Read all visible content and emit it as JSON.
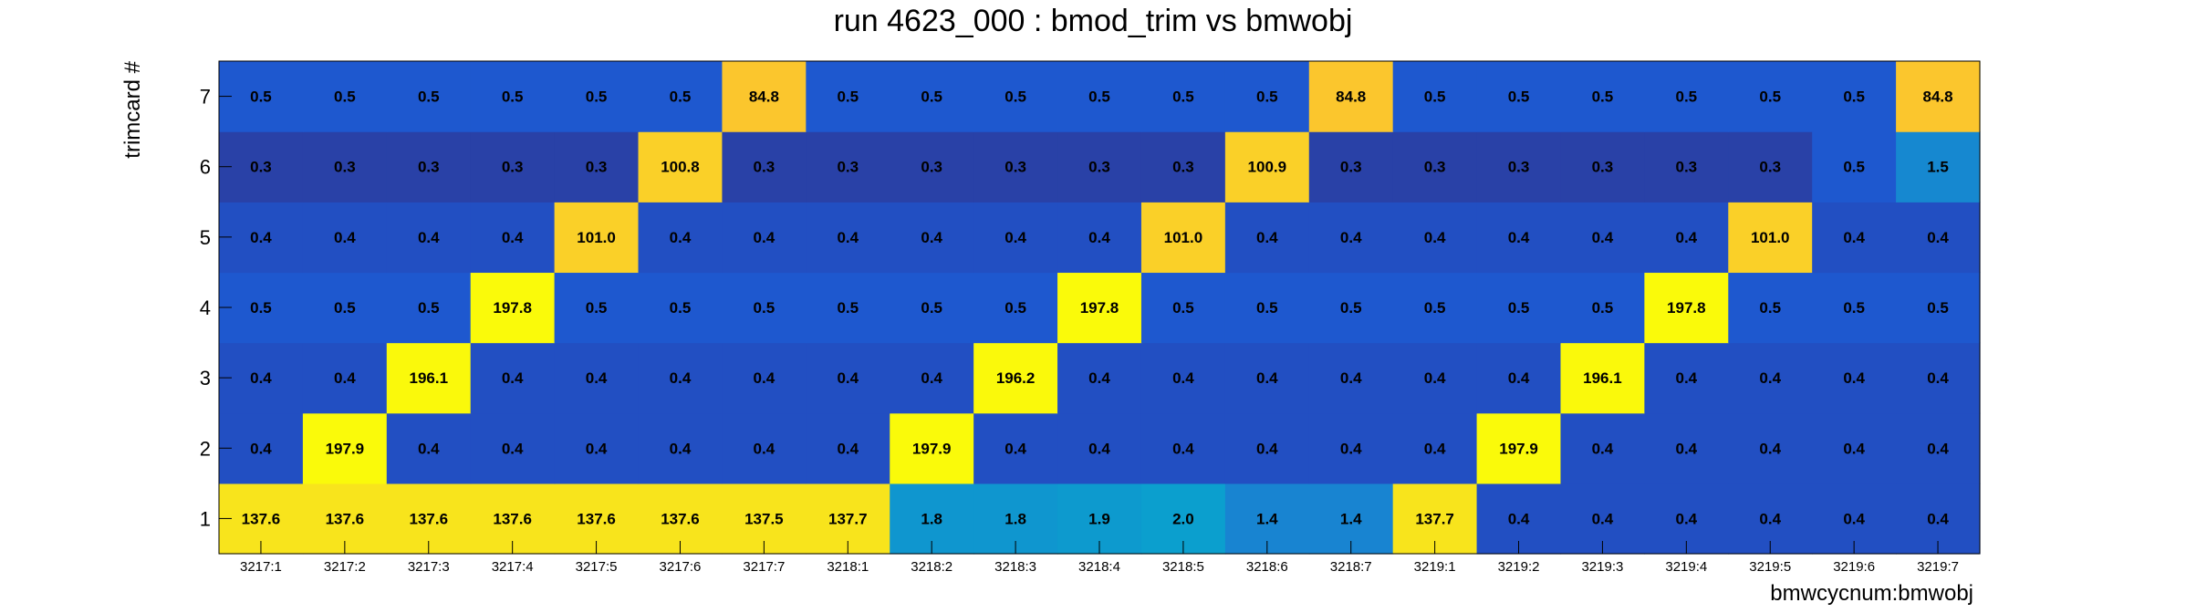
{
  "chart_data": {
    "type": "heatmap",
    "title": "run 4623_000 : bmod_trim vs bmwobj",
    "xlabel": "bmwcycnum:bmwobj",
    "ylabel": "trimcard #",
    "x_categories": [
      "3217:1",
      "3217:2",
      "3217:3",
      "3217:4",
      "3217:5",
      "3217:6",
      "3217:7",
      "3218:1",
      "3218:2",
      "3218:3",
      "3218:4",
      "3218:5",
      "3218:6",
      "3218:7",
      "3219:1",
      "3219:2",
      "3219:3",
      "3219:4",
      "3219:5",
      "3219:6",
      "3219:7"
    ],
    "y_categories": [
      "1",
      "2",
      "3",
      "4",
      "5",
      "6",
      "7"
    ],
    "values": [
      [
        "137.6",
        "137.6",
        "137.6",
        "137.6",
        "137.6",
        "137.6",
        "137.5",
        "137.7",
        "1.8",
        "1.8",
        "1.9",
        "2.0",
        "1.4",
        "1.4",
        "137.7",
        "0.4",
        "0.4",
        "0.4",
        "0.4",
        "0.4",
        "0.4"
      ],
      [
        "0.4",
        "197.9",
        "0.4",
        "0.4",
        "0.4",
        "0.4",
        "0.4",
        "0.4",
        "197.9",
        "0.4",
        "0.4",
        "0.4",
        "0.4",
        "0.4",
        "0.4",
        "197.9",
        "0.4",
        "0.4",
        "0.4",
        "0.4",
        "0.4"
      ],
      [
        "0.4",
        "0.4",
        "196.1",
        "0.4",
        "0.4",
        "0.4",
        "0.4",
        "0.4",
        "0.4",
        "196.2",
        "0.4",
        "0.4",
        "0.4",
        "0.4",
        "0.4",
        "0.4",
        "196.1",
        "0.4",
        "0.4",
        "0.4",
        "0.4"
      ],
      [
        "0.5",
        "0.5",
        "0.5",
        "197.8",
        "0.5",
        "0.5",
        "0.5",
        "0.5",
        "0.5",
        "0.5",
        "197.8",
        "0.5",
        "0.5",
        "0.5",
        "0.5",
        "0.5",
        "0.5",
        "197.8",
        "0.5",
        "0.5",
        "0.5"
      ],
      [
        "0.4",
        "0.4",
        "0.4",
        "0.4",
        "101.0",
        "0.4",
        "0.4",
        "0.4",
        "0.4",
        "0.4",
        "0.4",
        "101.0",
        "0.4",
        "0.4",
        "0.4",
        "0.4",
        "0.4",
        "0.4",
        "101.0",
        "0.4",
        "0.4"
      ],
      [
        "0.3",
        "0.3",
        "0.3",
        "0.3",
        "0.3",
        "100.8",
        "0.3",
        "0.3",
        "0.3",
        "0.3",
        "0.3",
        "0.3",
        "100.9",
        "0.3",
        "0.3",
        "0.3",
        "0.3",
        "0.3",
        "0.3",
        "0.5",
        "1.5"
      ],
      [
        "0.5",
        "0.5",
        "0.5",
        "0.5",
        "0.5",
        "0.5",
        "84.8",
        "0.5",
        "0.5",
        "0.5",
        "0.5",
        "0.5",
        "0.5",
        "84.8",
        "0.5",
        "0.5",
        "0.5",
        "0.5",
        "0.5",
        "0.5",
        "84.8"
      ]
    ],
    "color_scale": {
      "stops": [
        {
          "v": 0.25,
          "color": "#2c3a9a"
        },
        {
          "v": 0.45,
          "color": "#1e56cf"
        },
        {
          "v": 1.3,
          "color": "#1a7fd1"
        },
        {
          "v": 2.0,
          "color": "#0b9fce"
        },
        {
          "v": 84,
          "color": "#fbc62d"
        },
        {
          "v": 137,
          "color": "#f8e41c"
        },
        {
          "v": 198,
          "color": "#fafa0a"
        }
      ]
    },
    "grid": false,
    "legend": "none"
  }
}
